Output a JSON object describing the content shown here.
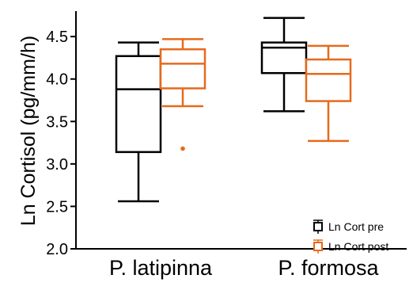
{
  "chart_data": {
    "type": "box",
    "title": "",
    "ylabel": "Ln Cortisol (pg/mm/h)",
    "xlabel": "",
    "ylim": [
      2.0,
      4.8
    ],
    "yticks": [
      2.0,
      2.5,
      3.0,
      3.5,
      4.0,
      4.5
    ],
    "ytick_labels": [
      "2.0",
      "2.5",
      "3.0",
      "3.5",
      "4.0",
      "4.5"
    ],
    "categories": [
      "P. latipinna",
      "P. formosa"
    ],
    "grid": false,
    "legend_position": "bottom-right",
    "series": [
      {
        "name": "Ln Cort pre",
        "color": "#000000",
        "boxes": [
          {
            "min": 2.56,
            "q1": 3.14,
            "median": 3.88,
            "q3": 4.27,
            "max": 4.43,
            "outliers": []
          },
          {
            "min": 3.62,
            "q1": 4.07,
            "median": 4.37,
            "q3": 4.43,
            "max": 4.72,
            "outliers": []
          }
        ]
      },
      {
        "name": "Ln Cort post",
        "color": "#E66A1C",
        "boxes": [
          {
            "min": 3.68,
            "q1": 3.89,
            "median": 4.18,
            "q3": 4.35,
            "max": 4.47,
            "outliers": [
              3.18
            ]
          },
          {
            "min": 3.27,
            "q1": 3.74,
            "median": 4.06,
            "q3": 4.23,
            "max": 4.39,
            "outliers": []
          }
        ]
      }
    ]
  }
}
